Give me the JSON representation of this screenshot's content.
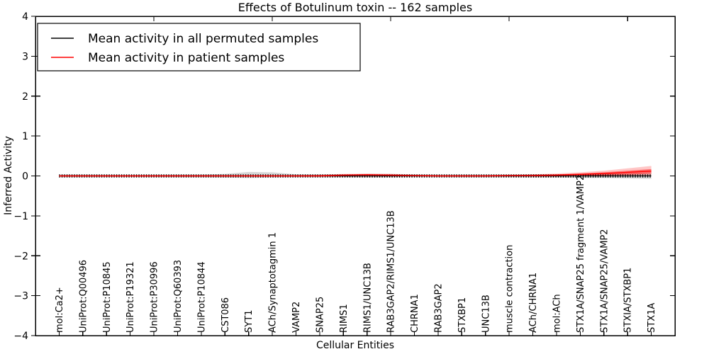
{
  "chart_data": {
    "type": "line",
    "title": "Effects of Botulinum toxin -- 162 samples",
    "xlabel": "Cellular Entities",
    "ylabel": "Inferred Activity",
    "ylim": [
      -4,
      4
    ],
    "yticks": [
      -4,
      -3,
      -2,
      -1,
      0,
      1,
      2,
      3,
      4
    ],
    "grid": false,
    "legend_position": "upper left",
    "categories": [
      "mol:Ca2+",
      "UniProt:Q00496",
      "UniProt:P10845",
      "UniProt:P19321",
      "UniProt:P30996",
      "UniProt:Q60393",
      "UniProt:P10844",
      "CST086",
      "SYT1",
      "ACh/Synaptotagmin 1",
      "VAMP2",
      "SNAP25",
      "RIMS1",
      "RIMS1/UNC13B",
      "RAB3GAP2/RIMS1/UNC13B",
      "CHRNA1",
      "RAB3GAP2",
      "STXBP1",
      "UNC13B",
      "muscle contraction",
      "ACh/CHRNA1",
      "mol:ACh",
      "STX1A/SNAP25 fragment 1/VAMP2",
      "STX1A/SNAP25/VAMP2",
      "STXIA/STXBP1",
      "STX1A"
    ],
    "series": [
      {
        "name": "Mean activity in all permuted samples",
        "color": "#000000",
        "marker": "dense-plus-ticks",
        "values": [
          0,
          0,
          0,
          0,
          0,
          0,
          0,
          0,
          0,
          0,
          0,
          0,
          0,
          0,
          0,
          0,
          0,
          0,
          0,
          0,
          0,
          0,
          0,
          0,
          0,
          0
        ]
      },
      {
        "name": "Mean activity in patient samples",
        "color": "#ff0000",
        "marker": "none",
        "values": [
          0,
          0,
          0,
          0,
          0,
          0,
          0,
          0,
          0,
          0,
          0,
          0,
          0.02,
          0.03,
          0.02,
          0.01,
          0,
          0,
          0,
          0.01,
          0.01,
          0.02,
          0.04,
          0.06,
          0.09,
          0.12
        ]
      }
    ],
    "bands": [
      {
        "name": "permuted-samples-ci",
        "color": "#000000",
        "opacity": 0.16,
        "upper": [
          0.03,
          0.03,
          0.03,
          0.03,
          0.03,
          0.03,
          0.03,
          0.05,
          0.1,
          0.09,
          0.04,
          0.03,
          0.04,
          0.05,
          0.05,
          0.04,
          0.03,
          0.03,
          0.03,
          0.03,
          0.04,
          0.04,
          0.05,
          0.05,
          0.06,
          0.07
        ],
        "lower": [
          -0.03,
          -0.03,
          -0.03,
          -0.03,
          -0.03,
          -0.03,
          -0.03,
          -0.04,
          -0.05,
          -0.04,
          -0.03,
          -0.03,
          -0.03,
          -0.04,
          -0.04,
          -0.03,
          -0.03,
          -0.03,
          -0.03,
          -0.03,
          -0.04,
          -0.04,
          -0.05,
          -0.05,
          -0.06,
          -0.07
        ]
      },
      {
        "name": "patient-samples-ci-outer",
        "color": "#ff0000",
        "opacity": 0.22,
        "upper": [
          0.02,
          0.02,
          0.02,
          0.02,
          0.02,
          0.02,
          0.02,
          0.02,
          0.02,
          0.02,
          0.02,
          0.03,
          0.05,
          0.06,
          0.05,
          0.03,
          0.02,
          0.02,
          0.02,
          0.03,
          0.04,
          0.06,
          0.09,
          0.13,
          0.19,
          0.25
        ],
        "lower": [
          -0.02,
          -0.02,
          -0.02,
          -0.02,
          -0.02,
          -0.02,
          -0.02,
          -0.02,
          -0.02,
          -0.02,
          -0.02,
          -0.02,
          -0.02,
          -0.02,
          -0.02,
          -0.02,
          -0.02,
          -0.02,
          -0.02,
          -0.02,
          -0.02,
          -0.02,
          -0.01,
          0,
          0,
          0.01
        ]
      },
      {
        "name": "patient-samples-ci-inner",
        "color": "#ff0000",
        "opacity": 0.45,
        "upper": [
          0.01,
          0.01,
          0.01,
          0.01,
          0.01,
          0.01,
          0.01,
          0.01,
          0.01,
          0.01,
          0.01,
          0.02,
          0.03,
          0.04,
          0.03,
          0.02,
          0.01,
          0.01,
          0.01,
          0.02,
          0.03,
          0.04,
          0.06,
          0.09,
          0.13,
          0.17
        ],
        "lower": [
          -0.01,
          -0.01,
          -0.01,
          -0.01,
          -0.01,
          -0.01,
          -0.01,
          -0.01,
          -0.01,
          -0.01,
          -0.01,
          -0.01,
          -0.01,
          -0.01,
          -0.01,
          -0.01,
          -0.01,
          -0.01,
          -0.01,
          -0.01,
          -0.01,
          -0.01,
          0,
          0.01,
          0.03,
          0.06
        ]
      }
    ]
  }
}
